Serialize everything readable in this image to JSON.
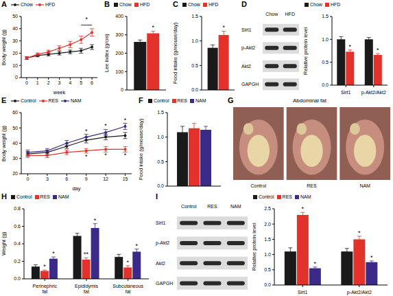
{
  "chart_data": [
    {
      "label": "A",
      "type": "line",
      "x_label": "week",
      "y_label": "Body weight (g)",
      "x": [
        0,
        1,
        2,
        3,
        4,
        5,
        6
      ],
      "xlim": [
        -0.5,
        6.5
      ],
      "xticks": [
        0,
        1,
        2,
        3,
        4,
        5,
        6
      ],
      "ylim": [
        0,
        50
      ],
      "yticks": [
        0,
        10,
        20,
        30,
        40,
        50
      ],
      "legend": "top",
      "series": [
        {
          "name": "Chow",
          "color": "#1a1a1a",
          "marker": "circle",
          "values": [
            16,
            18,
            19,
            20,
            21,
            22,
            25
          ],
          "errors": [
            1,
            1,
            1.2,
            1.5,
            1.5,
            2,
            2
          ]
        },
        {
          "name": "HFD",
          "color": "#e3322b",
          "marker": "circle",
          "values": [
            16,
            19,
            21,
            24,
            27,
            31,
            37
          ],
          "errors": [
            1,
            1.2,
            1.5,
            2,
            2.5,
            3,
            3
          ]
        }
      ],
      "annotations": [
        {
          "text": "*",
          "x": [
            5,
            6
          ]
        }
      ]
    },
    {
      "label": "B",
      "type": "bar",
      "y_label": "Lee index (g/cm)",
      "categories": [
        null
      ],
      "ylim": [
        0,
        400
      ],
      "yticks": [
        0,
        100,
        200,
        300,
        400
      ],
      "legend": "top",
      "series": [
        {
          "name": "Chow",
          "color": "#1a1a1a",
          "values": [
            262
          ],
          "errors": [
            10
          ]
        },
        {
          "name": "HFD",
          "color": "#e3322b",
          "values": [
            308
          ],
          "errors": [
            12
          ],
          "significance": [
            "*"
          ]
        }
      ]
    },
    {
      "label": "C",
      "type": "bar",
      "y_label": "Food intake (g/mouse/day)",
      "categories": [
        null
      ],
      "ylim": [
        0,
        1.5
      ],
      "yticks": [
        {
          "value": 0,
          "label": "0.0"
        },
        0.5,
        {
          "value": 1,
          "label": "1.0"
        },
        1.5
      ],
      "legend": "top",
      "series": [
        {
          "name": "Chow",
          "color": "#1a1a1a",
          "values": [
            0.86
          ],
          "errors": [
            0.06
          ]
        },
        {
          "name": "HFD",
          "color": "#e3322b",
          "values": [
            1.12
          ],
          "errors": [
            0.08
          ],
          "significance": [
            "*"
          ]
        }
      ]
    },
    {
      "type": "bar",
      "y_label": "Relative protein level",
      "categories": [
        "Sirt1",
        "p-Akt2/Akt2"
      ],
      "ylim": [
        0,
        1.5
      ],
      "yticks": [
        {
          "value": 0,
          "label": "0.0"
        },
        0.5,
        {
          "value": 1,
          "label": "1.0"
        },
        1.5
      ],
      "legend": "top",
      "series": [
        {
          "name": "Chow",
          "color": "#1a1a1a",
          "values": [
            1.0,
            1.0
          ],
          "errors": [
            0.06,
            0.04
          ]
        },
        {
          "name": "HFD",
          "color": "#e3322b",
          "values": [
            0.73,
            0.66
          ],
          "errors": [
            0.04,
            0.03
          ],
          "significance": [
            "*",
            "*"
          ]
        }
      ]
    },
    {
      "label": "E",
      "type": "line",
      "x_label": "day",
      "y_label": "Body weight (g)",
      "x": [
        0,
        3,
        6,
        9,
        12,
        15
      ],
      "xlim": [
        -1,
        16
      ],
      "xticks": [
        0,
        3,
        6,
        9,
        12,
        15
      ],
      "ylim": [
        20,
        60
      ],
      "yticks": [
        20,
        30,
        40,
        50,
        60
      ],
      "legend": "top",
      "series": [
        {
          "name": "Control",
          "color": "#1a1a1a",
          "marker": "circle",
          "values": [
            33,
            34,
            38,
            42,
            44,
            45
          ],
          "errors": [
            1.5,
            1.5,
            1.5,
            1.8,
            1.8,
            2
          ]
        },
        {
          "name": "RES",
          "color": "#e3322b",
          "marker": "circle",
          "values": [
            32,
            32,
            34,
            35,
            36,
            36
          ],
          "errors": [
            1.5,
            1.5,
            1.5,
            1.5,
            1.8,
            1.8
          ],
          "significance": [
            null,
            null,
            null,
            "*",
            "*",
            "*"
          ]
        },
        {
          "name": "NAM",
          "color": "#3b2a87",
          "marker": "circle",
          "values": [
            34,
            35,
            40,
            44,
            47,
            51
          ],
          "errors": [
            1.5,
            1.5,
            1.8,
            1.8,
            2,
            2
          ],
          "significance": [
            null,
            null,
            null,
            "*",
            "*",
            "*"
          ]
        }
      ]
    },
    {
      "label": "F",
      "type": "bar",
      "y_label": "Food intake (g/mouse/day)",
      "categories": [
        null
      ],
      "ylim": [
        0,
        1.5
      ],
      "yticks": [
        {
          "value": 0,
          "label": "0.0"
        },
        0.5,
        {
          "value": 1,
          "label": "1.0"
        },
        1.5
      ],
      "legend": "top",
      "series": [
        {
          "name": "Control",
          "color": "#1a1a1a",
          "values": [
            1.1
          ],
          "errors": [
            0.12
          ]
        },
        {
          "name": "RES",
          "color": "#e3322b",
          "values": [
            1.18
          ],
          "errors": [
            0.1
          ]
        },
        {
          "name": "NAM",
          "color": "#3b2a87",
          "values": [
            1.15
          ],
          "errors": [
            0.07
          ]
        }
      ]
    },
    {
      "label": "H",
      "type": "bar",
      "y_label": "Weight (g)",
      "categories": [
        "Perinephric fat",
        "Epididymis fat",
        "Subcutaneous fat"
      ],
      "ylim": [
        0,
        0.8
      ],
      "yticks": [
        {
          "value": 0,
          "label": "0.0"
        },
        0.2,
        0.4,
        0.6,
        0.8
      ],
      "legend": "top",
      "series": [
        {
          "name": "Control",
          "color": "#1a1a1a",
          "values": [
            0.14,
            0.49,
            0.25
          ],
          "errors": [
            0.02,
            0.03,
            0.03
          ]
        },
        {
          "name": "RES",
          "color": "#e3322b",
          "values": [
            0.09,
            0.22,
            0.13
          ],
          "errors": [
            0.01,
            0.02,
            0.02
          ],
          "significance": [
            "*",
            "**",
            "*"
          ]
        },
        {
          "name": "NAM",
          "color": "#3b2a87",
          "values": [
            0.23,
            0.58,
            0.31
          ],
          "errors": [
            0.02,
            0.05,
            0.03
          ],
          "significance": [
            "*",
            "*",
            "*"
          ]
        }
      ]
    },
    {
      "type": "bar",
      "y_label": "Relative protein level",
      "categories": [
        "Sirt1",
        "p-Akt2/Akt2"
      ],
      "ylim": [
        0,
        2.5
      ],
      "yticks": [
        {
          "value": 0,
          "label": "0.0"
        },
        0.5,
        {
          "value": 1,
          "label": "1.0"
        },
        1.5,
        {
          "value": 2,
          "label": "2.0"
        },
        2.5
      ],
      "legend": "top",
      "series": [
        {
          "name": "Control",
          "color": "#1a1a1a",
          "values": [
            1.1,
            1.1
          ],
          "errors": [
            0.12,
            0.1
          ]
        },
        {
          "name": "RES",
          "color": "#e3322b",
          "values": [
            2.3,
            1.5
          ],
          "errors": [
            0.08,
            0.1
          ],
          "significance": [
            "*",
            "*"
          ]
        },
        {
          "name": "NAM",
          "color": "#3b2a87",
          "values": [
            0.55,
            0.75
          ],
          "errors": [
            0.04,
            0.04
          ],
          "significance": [
            "*",
            "*"
          ]
        }
      ]
    }
  ],
  "blots": [
    {
      "label": "D",
      "lanes": [
        "Chow",
        "HFD"
      ],
      "rows": [
        "Sirt1",
        "p-Akt2",
        "Akt2",
        "GAPGH"
      ]
    },
    {
      "label": "I",
      "lanes": [
        "Control",
        "RES",
        "NAM"
      ],
      "rows": [
        "Sirt1",
        "p-Akt2",
        "Akt2",
        "GAPGH"
      ]
    }
  ],
  "photo": {
    "label": "G",
    "title": "Abdominal fat",
    "panels": [
      "Control",
      "RES",
      "NAM"
    ]
  }
}
